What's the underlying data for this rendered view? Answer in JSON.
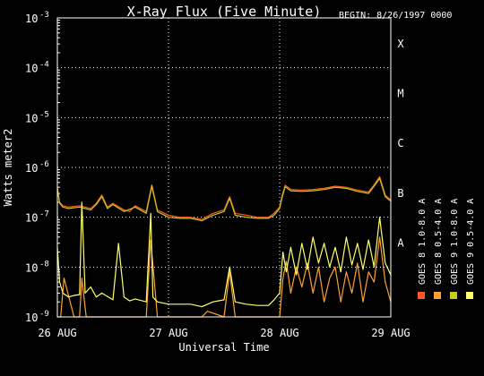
{
  "chart_data": {
    "type": "line",
    "title": "X-Ray Flux (Five Minute)",
    "begin_label": "BEGIN: 8/26/1997 0000",
    "xlabel": "Universal Time",
    "ylabel": "Watts meter2",
    "y_scale": "log",
    "ylim": [
      1e-09,
      0.001
    ],
    "xlim": [
      0,
      3
    ],
    "x_ticks": [
      {
        "value": 0,
        "label": "26 AUG"
      },
      {
        "value": 1,
        "label": "27 AUG"
      },
      {
        "value": 2,
        "label": "28 AUG"
      },
      {
        "value": 3,
        "label": "29 AUG"
      }
    ],
    "y_ticks": [
      {
        "exp": -9,
        "base": "10",
        "sup": "-9"
      },
      {
        "exp": -8,
        "base": "10",
        "sup": "-8"
      },
      {
        "exp": -7,
        "base": "10",
        "sup": "-7"
      },
      {
        "exp": -6,
        "base": "10",
        "sup": "-6"
      },
      {
        "exp": -5,
        "base": "10",
        "sup": "-5"
      },
      {
        "exp": -4,
        "base": "10",
        "sup": "-4"
      },
      {
        "exp": -3,
        "base": "10",
        "sup": "-3"
      }
    ],
    "flare_classes": [
      {
        "label": "A",
        "exp": -8
      },
      {
        "label": "B",
        "exp": -7
      },
      {
        "label": "C",
        "exp": -6
      },
      {
        "label": "M",
        "exp": -5
      },
      {
        "label": "X",
        "exp": -4
      }
    ],
    "grid": "dotted",
    "legend_position": "right",
    "series": [
      {
        "name": "GOES 8 1.0-8.0 A",
        "color": "#ff5a1e",
        "x": [
          0,
          0.02,
          0.05,
          0.1,
          0.2,
          0.3,
          0.35,
          0.4,
          0.45,
          0.5,
          0.6,
          0.65,
          0.7,
          0.8,
          0.85,
          0.9,
          1.0,
          1.1,
          1.2,
          1.3,
          1.4,
          1.5,
          1.55,
          1.6,
          1.7,
          1.8,
          1.9,
          1.95,
          2.0,
          2.02,
          2.05,
          2.1,
          2.2,
          2.3,
          2.4,
          2.5,
          2.6,
          2.7,
          2.8,
          2.85,
          2.9,
          2.95,
          3.0
        ],
        "values": [
          4e-07,
          2e-07,
          1.7e-07,
          1.6e-07,
          1.7e-07,
          1.5e-07,
          1.9e-07,
          2.8e-07,
          1.6e-07,
          1.9e-07,
          1.4e-07,
          1.3e-07,
          1.7e-07,
          1.3e-07,
          4.5e-07,
          1.4e-07,
          1.1e-07,
          1e-07,
          1e-07,
          9e-08,
          1.2e-07,
          1.4e-07,
          2.6e-07,
          1.2e-07,
          1.1e-07,
          1e-07,
          1e-07,
          1.2e-07,
          1.6e-07,
          2.6e-07,
          4.4e-07,
          3.6e-07,
          3.5e-07,
          3.6e-07,
          3.8e-07,
          4.2e-07,
          4e-07,
          3.5e-07,
          3.2e-07,
          4.5e-07,
          6.5e-07,
          2.8e-07,
          2.2e-07
        ]
      },
      {
        "name": "GOES 8 0.5-4.0 A",
        "color": "#ffa033",
        "x": [
          0,
          0.03,
          0.06,
          0.15,
          0.2,
          0.22,
          0.26,
          0.3,
          0.4,
          0.5,
          0.6,
          0.7,
          0.8,
          0.84,
          0.9,
          1.0,
          1.05,
          1.2,
          1.3,
          1.35,
          1.5,
          1.55,
          1.6,
          1.8,
          2.0,
          2.03,
          2.06,
          2.1,
          2.15,
          2.2,
          2.25,
          2.3,
          2.35,
          2.4,
          2.45,
          2.5,
          2.55,
          2.6,
          2.65,
          2.7,
          2.75,
          2.8,
          2.85,
          2.9,
          2.95,
          3.0
        ],
        "values": [
          1e-09,
          1e-09,
          6e-09,
          1e-09,
          1e-09,
          6e-09,
          1e-09,
          1e-09,
          1e-09,
          1e-09,
          1e-09,
          1e-09,
          1e-09,
          3.5e-08,
          1e-09,
          1e-09,
          1e-09,
          1e-09,
          1e-09,
          1.3e-09,
          1e-09,
          8e-09,
          1e-09,
          1e-09,
          1e-09,
          6e-09,
          1.3e-08,
          3e-09,
          1e-08,
          4e-09,
          1.2e-08,
          3e-09,
          1e-08,
          2e-09,
          6e-09,
          1e-08,
          2e-09,
          8e-09,
          3e-09,
          1.2e-08,
          2e-09,
          8e-09,
          5e-09,
          4e-08,
          5e-09,
          2e-09
        ]
      },
      {
        "name": "GOES 9 1.0-8.0 A",
        "color": "#c8c81e",
        "x": [
          0,
          0.02,
          0.05,
          0.1,
          0.2,
          0.3,
          0.35,
          0.4,
          0.45,
          0.5,
          0.6,
          0.7,
          0.8,
          0.85,
          0.9,
          1.0,
          1.1,
          1.2,
          1.3,
          1.4,
          1.5,
          1.55,
          1.6,
          1.7,
          1.8,
          1.9,
          1.95,
          2.0,
          2.02,
          2.05,
          2.1,
          2.2,
          2.3,
          2.4,
          2.5,
          2.6,
          2.7,
          2.8,
          2.85,
          2.9,
          2.95,
          3.0
        ],
        "values": [
          3.8e-07,
          1.9e-07,
          1.6e-07,
          1.5e-07,
          1.6e-07,
          1.4e-07,
          1.8e-07,
          2.6e-07,
          1.5e-07,
          1.8e-07,
          1.3e-07,
          1.6e-07,
          1.2e-07,
          4.2e-07,
          1.3e-07,
          1e-07,
          9.5e-08,
          9.5e-08,
          8.5e-08,
          1.1e-07,
          1.3e-07,
          2.4e-07,
          1.1e-07,
          1e-07,
          9.5e-08,
          9.5e-08,
          1.1e-07,
          1.5e-07,
          2.4e-07,
          4.1e-07,
          3.4e-07,
          3.3e-07,
          3.4e-07,
          3.6e-07,
          4e-07,
          3.8e-07,
          3.3e-07,
          3e-07,
          4.2e-07,
          6e-07,
          2.6e-07,
          2.1e-07
        ]
      },
      {
        "name": "GOES 9 0.5-4.0 A",
        "color": "#ffff66",
        "x": [
          0,
          0.02,
          0.05,
          0.1,
          0.15,
          0.2,
          0.22,
          0.25,
          0.3,
          0.35,
          0.4,
          0.5,
          0.55,
          0.6,
          0.65,
          0.7,
          0.8,
          0.84,
          0.86,
          0.9,
          1.0,
          1.1,
          1.2,
          1.3,
          1.4,
          1.5,
          1.55,
          1.6,
          1.7,
          1.8,
          1.9,
          1.95,
          2.0,
          2.03,
          2.06,
          2.1,
          2.15,
          2.2,
          2.25,
          2.3,
          2.35,
          2.4,
          2.45,
          2.5,
          2.55,
          2.6,
          2.65,
          2.7,
          2.75,
          2.8,
          2.85,
          2.9,
          2.95,
          3.0
        ],
        "values": [
          2.5e-08,
          5e-09,
          3e-09,
          2.5e-09,
          2.7e-09,
          2.8e-09,
          2e-07,
          3e-09,
          4e-09,
          2.5e-09,
          3e-09,
          2.2e-09,
          3e-08,
          2.5e-09,
          2.1e-09,
          2.3e-09,
          2e-09,
          1.2e-07,
          2.5e-09,
          2e-09,
          1.8e-09,
          1.8e-09,
          1.8e-09,
          1.6e-09,
          2e-09,
          2.2e-09,
          1e-08,
          2e-09,
          1.8e-09,
          1.7e-09,
          1.7e-09,
          2.2e-09,
          3e-09,
          2e-08,
          8e-09,
          2.5e-08,
          7e-09,
          3e-08,
          9e-09,
          4e-08,
          1.2e-08,
          3e-08,
          1e-08,
          2.5e-08,
          8e-09,
          4e-08,
          1.1e-08,
          3e-08,
          9e-09,
          3.5e-08,
          1e-08,
          1e-07,
          1.2e-08,
          7e-09
        ]
      }
    ]
  }
}
